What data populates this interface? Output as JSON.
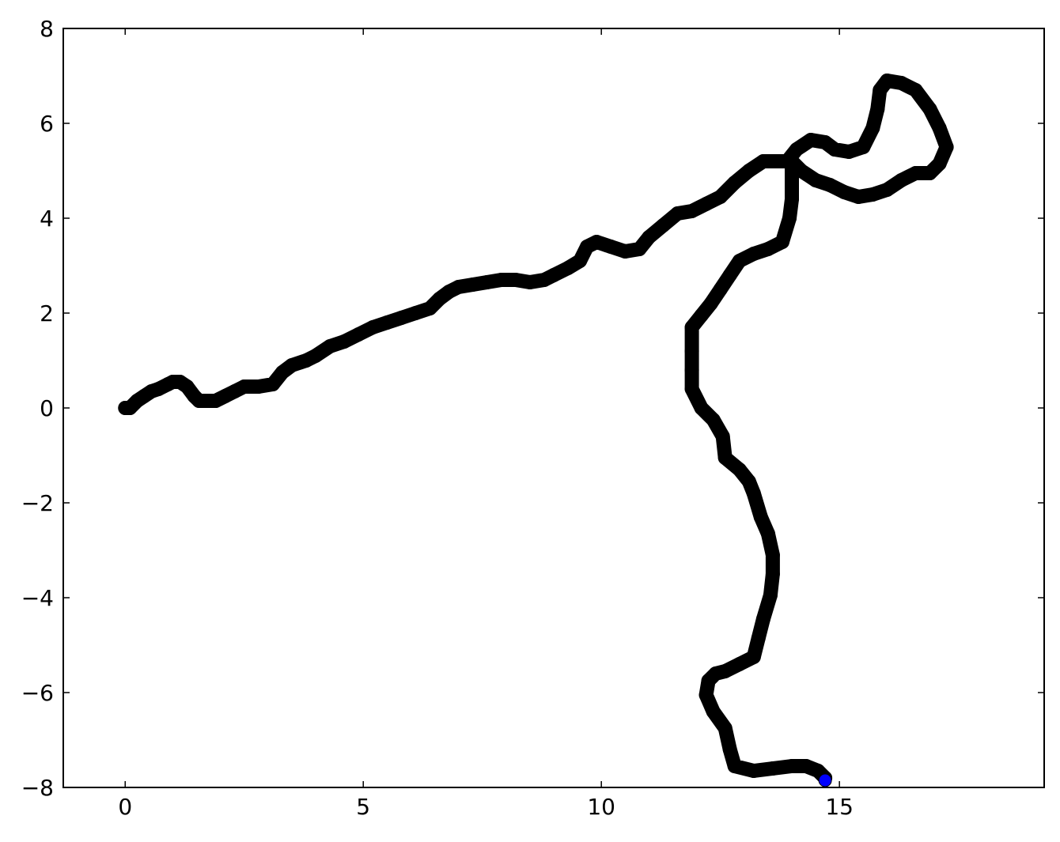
{
  "chart_data": {
    "type": "line",
    "title": "",
    "xlabel": "",
    "ylabel": "",
    "xlim": [
      -1.3,
      19.3
    ],
    "ylim": [
      -8,
      8
    ],
    "xticks": [
      0,
      5,
      10,
      15
    ],
    "yticks": [
      -8,
      -6,
      -4,
      -2,
      0,
      2,
      4,
      6,
      8
    ],
    "grid": false,
    "legend": "none",
    "series": [
      {
        "color": "#000000",
        "marker": "circle",
        "x": [
          0.0,
          0.1,
          0.25,
          0.4,
          0.55,
          0.7,
          0.9,
          1.0,
          1.15,
          1.3,
          1.45,
          1.55,
          1.7,
          1.9,
          2.1,
          2.3,
          2.5,
          2.8,
          3.1,
          3.3,
          3.5,
          3.8,
          4.0,
          4.3,
          4.6,
          4.9,
          5.2,
          5.5,
          5.8,
          6.1,
          6.4,
          6.6,
          6.8,
          7.0,
          7.3,
          7.6,
          7.9,
          8.2,
          8.5,
          8.8,
          9.0,
          9.3,
          9.55,
          9.7,
          9.9,
          10.2,
          10.5,
          10.8,
          11.0,
          11.3,
          11.6,
          11.9,
          12.2,
          12.5,
          12.8,
          13.1,
          13.4,
          13.7,
          13.9,
          14.1,
          14.4,
          14.7,
          14.9,
          15.2,
          15.5,
          15.7,
          15.8,
          15.85,
          16.0,
          16.3,
          16.6,
          16.9,
          17.1,
          17.25,
          17.1,
          16.9,
          16.6,
          16.3,
          16.0,
          15.7,
          15.4,
          15.1,
          14.8,
          14.5,
          14.2,
          14.0,
          14.0,
          14.0,
          13.95,
          13.8,
          13.5,
          13.2,
          12.9,
          12.7,
          12.5,
          12.3,
          12.1,
          11.9,
          11.9,
          11.9,
          11.9,
          12.1,
          12.35,
          12.55,
          12.6,
          12.9,
          13.1,
          13.2,
          13.35,
          13.5,
          13.6,
          13.6,
          13.55,
          13.4,
          13.3,
          13.2,
          12.9,
          12.6,
          12.4,
          12.25,
          12.2,
          12.35,
          12.6,
          12.7,
          12.8,
          13.2,
          13.6,
          14.0,
          14.3,
          14.55,
          14.7
        ],
        "y": [
          0.0,
          0.0,
          0.15,
          0.25,
          0.35,
          0.4,
          0.5,
          0.55,
          0.55,
          0.45,
          0.25,
          0.15,
          0.15,
          0.15,
          0.25,
          0.35,
          0.45,
          0.45,
          0.5,
          0.75,
          0.9,
          1.0,
          1.1,
          1.3,
          1.4,
          1.55,
          1.7,
          1.8,
          1.9,
          2.0,
          2.1,
          2.3,
          2.45,
          2.55,
          2.6,
          2.65,
          2.7,
          2.7,
          2.65,
          2.7,
          2.8,
          2.95,
          3.1,
          3.4,
          3.5,
          3.4,
          3.3,
          3.35,
          3.6,
          3.85,
          4.1,
          4.15,
          4.3,
          4.45,
          4.75,
          5.0,
          5.2,
          5.2,
          5.2,
          5.45,
          5.65,
          5.6,
          5.45,
          5.4,
          5.5,
          5.9,
          6.3,
          6.7,
          6.9,
          6.85,
          6.7,
          6.3,
          5.9,
          5.5,
          5.15,
          4.95,
          4.95,
          4.8,
          4.6,
          4.5,
          4.45,
          4.55,
          4.7,
          4.8,
          5.0,
          5.2,
          4.8,
          4.4,
          4.0,
          3.5,
          3.35,
          3.25,
          3.1,
          2.8,
          2.5,
          2.2,
          1.95,
          1.7,
          1.2,
          0.8,
          0.4,
          0.0,
          -0.25,
          -0.6,
          -1.05,
          -1.3,
          -1.55,
          -1.8,
          -2.3,
          -2.65,
          -3.1,
          -3.5,
          -3.95,
          -4.45,
          -4.85,
          -5.25,
          -5.4,
          -5.55,
          -5.6,
          -5.75,
          -6.05,
          -6.4,
          -6.75,
          -7.2,
          -7.55,
          -7.65,
          -7.6,
          -7.55,
          -7.55,
          -7.65,
          -7.8
        ]
      }
    ],
    "end_marker": {
      "x": 14.7,
      "y": -7.85,
      "color": "#0000ff"
    }
  }
}
